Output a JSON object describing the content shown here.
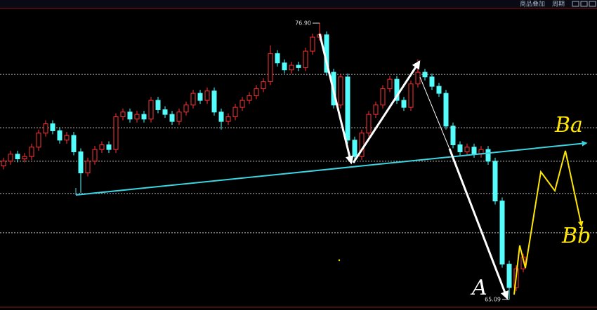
{
  "toolbar": {
    "items": [
      "商品叠加",
      "周期"
    ]
  },
  "chart_data": {
    "type": "candlestick",
    "up_color": "#ff3232",
    "down_color": "#54fcfc",
    "ylim": [
      64.79,
      77.35
    ],
    "grid_values": [
      74.71,
      72.43,
      71.0,
      69.62,
      67.94
    ],
    "max_label": {
      "value": 76.9,
      "label": "76.90"
    },
    "min_label": {
      "value": 65.09,
      "label": "65.09"
    },
    "annotations": [
      "Ba",
      "Bb",
      "A"
    ],
    "ohlc": [
      [
        70.8,
        71.15,
        70.65,
        71.0
      ],
      [
        71.0,
        71.45,
        70.85,
        71.3
      ],
      [
        71.3,
        71.45,
        70.95,
        71.1
      ],
      [
        71.1,
        71.35,
        70.95,
        71.2
      ],
      [
        71.2,
        71.75,
        71.05,
        71.6
      ],
      [
        71.6,
        72.35,
        71.45,
        72.2
      ],
      [
        72.2,
        72.75,
        72.05,
        72.6
      ],
      [
        72.6,
        72.75,
        72.15,
        72.3
      ],
      [
        72.3,
        72.45,
        71.75,
        71.9
      ],
      [
        71.9,
        72.25,
        71.75,
        72.1
      ],
      [
        72.1,
        72.25,
        71.25,
        71.4
      ],
      [
        71.4,
        71.55,
        69.65,
        70.5
      ],
      [
        70.5,
        71.15,
        70.35,
        71.0
      ],
      [
        71.0,
        71.65,
        70.85,
        71.5
      ],
      [
        71.5,
        71.85,
        71.35,
        71.7
      ],
      [
        71.7,
        71.85,
        71.35,
        71.5
      ],
      [
        71.5,
        73.05,
        71.35,
        72.9
      ],
      [
        72.9,
        73.25,
        72.75,
        73.1
      ],
      [
        73.1,
        73.25,
        72.65,
        72.8
      ],
      [
        72.8,
        73.15,
        72.65,
        73.0
      ],
      [
        73.0,
        73.15,
        72.65,
        72.8
      ],
      [
        72.8,
        73.75,
        72.65,
        73.6
      ],
      [
        73.6,
        73.75,
        73.05,
        73.2
      ],
      [
        73.2,
        73.35,
        72.85,
        73.0
      ],
      [
        73.0,
        73.15,
        72.55,
        72.7
      ],
      [
        72.7,
        73.25,
        72.55,
        73.1
      ],
      [
        73.1,
        73.55,
        72.95,
        73.4
      ],
      [
        73.4,
        74.05,
        73.25,
        73.9
      ],
      [
        73.9,
        74.05,
        73.45,
        73.6
      ],
      [
        73.6,
        74.15,
        73.45,
        74.0
      ],
      [
        74.0,
        74.15,
        72.95,
        73.1
      ],
      [
        73.1,
        73.25,
        72.35,
        72.7
      ],
      [
        72.7,
        73.05,
        72.55,
        72.9
      ],
      [
        72.9,
        73.45,
        72.75,
        73.3
      ],
      [
        73.3,
        73.75,
        73.15,
        73.6
      ],
      [
        73.6,
        73.95,
        73.45,
        73.8
      ],
      [
        73.8,
        74.25,
        73.65,
        74.1
      ],
      [
        74.1,
        74.55,
        73.95,
        74.4
      ],
      [
        74.4,
        75.95,
        74.25,
        75.6
      ],
      [
        75.6,
        75.75,
        75.05,
        75.2
      ],
      [
        75.2,
        75.35,
        74.75,
        74.9
      ],
      [
        74.9,
        75.25,
        74.75,
        75.1
      ],
      [
        75.1,
        75.25,
        74.85,
        75.0
      ],
      [
        75.0,
        75.85,
        74.85,
        75.7
      ],
      [
        75.7,
        76.45,
        75.55,
        76.3
      ],
      [
        76.3,
        76.9,
        76.15,
        76.4
      ],
      [
        76.4,
        76.55,
        74.65,
        74.8
      ],
      [
        74.8,
        74.95,
        73.25,
        73.4
      ],
      [
        73.4,
        74.75,
        73.25,
        74.6
      ],
      [
        74.6,
        74.75,
        71.75,
        71.9
      ],
      [
        71.9,
        72.05,
        70.93,
        71.2
      ],
      [
        71.2,
        72.35,
        71.05,
        72.2
      ],
      [
        72.2,
        73.15,
        72.05,
        73.0
      ],
      [
        73.0,
        73.55,
        72.85,
        73.4
      ],
      [
        73.4,
        74.25,
        73.25,
        74.1
      ],
      [
        74.1,
        74.65,
        73.95,
        74.5
      ],
      [
        74.5,
        74.65,
        73.45,
        73.6
      ],
      [
        73.6,
        73.75,
        73.15,
        73.3
      ],
      [
        73.3,
        74.45,
        73.15,
        74.3
      ],
      [
        74.3,
        75.35,
        74.15,
        74.8
      ],
      [
        74.8,
        74.95,
        74.45,
        74.6
      ],
      [
        74.6,
        74.75,
        74.05,
        74.2
      ],
      [
        74.2,
        74.35,
        73.75,
        73.9
      ],
      [
        73.9,
        74.05,
        72.35,
        72.5
      ],
      [
        72.5,
        72.65,
        71.55,
        71.7
      ],
      [
        71.7,
        71.85,
        71.25,
        71.4
      ],
      [
        71.4,
        71.75,
        71.25,
        71.6
      ],
      [
        71.6,
        71.75,
        71.15,
        71.3
      ],
      [
        71.3,
        71.65,
        71.15,
        71.5
      ],
      [
        71.5,
        71.65,
        70.85,
        71.0
      ],
      [
        71.0,
        71.15,
        69.15,
        69.3
      ],
      [
        69.3,
        69.45,
        66.45,
        66.6
      ],
      [
        66.6,
        66.75,
        65.09,
        65.6
      ],
      [
        65.6,
        66.55,
        65.45,
        66.4
      ],
      [
        66.4,
        67.05,
        66.25,
        66.9
      ]
    ]
  }
}
